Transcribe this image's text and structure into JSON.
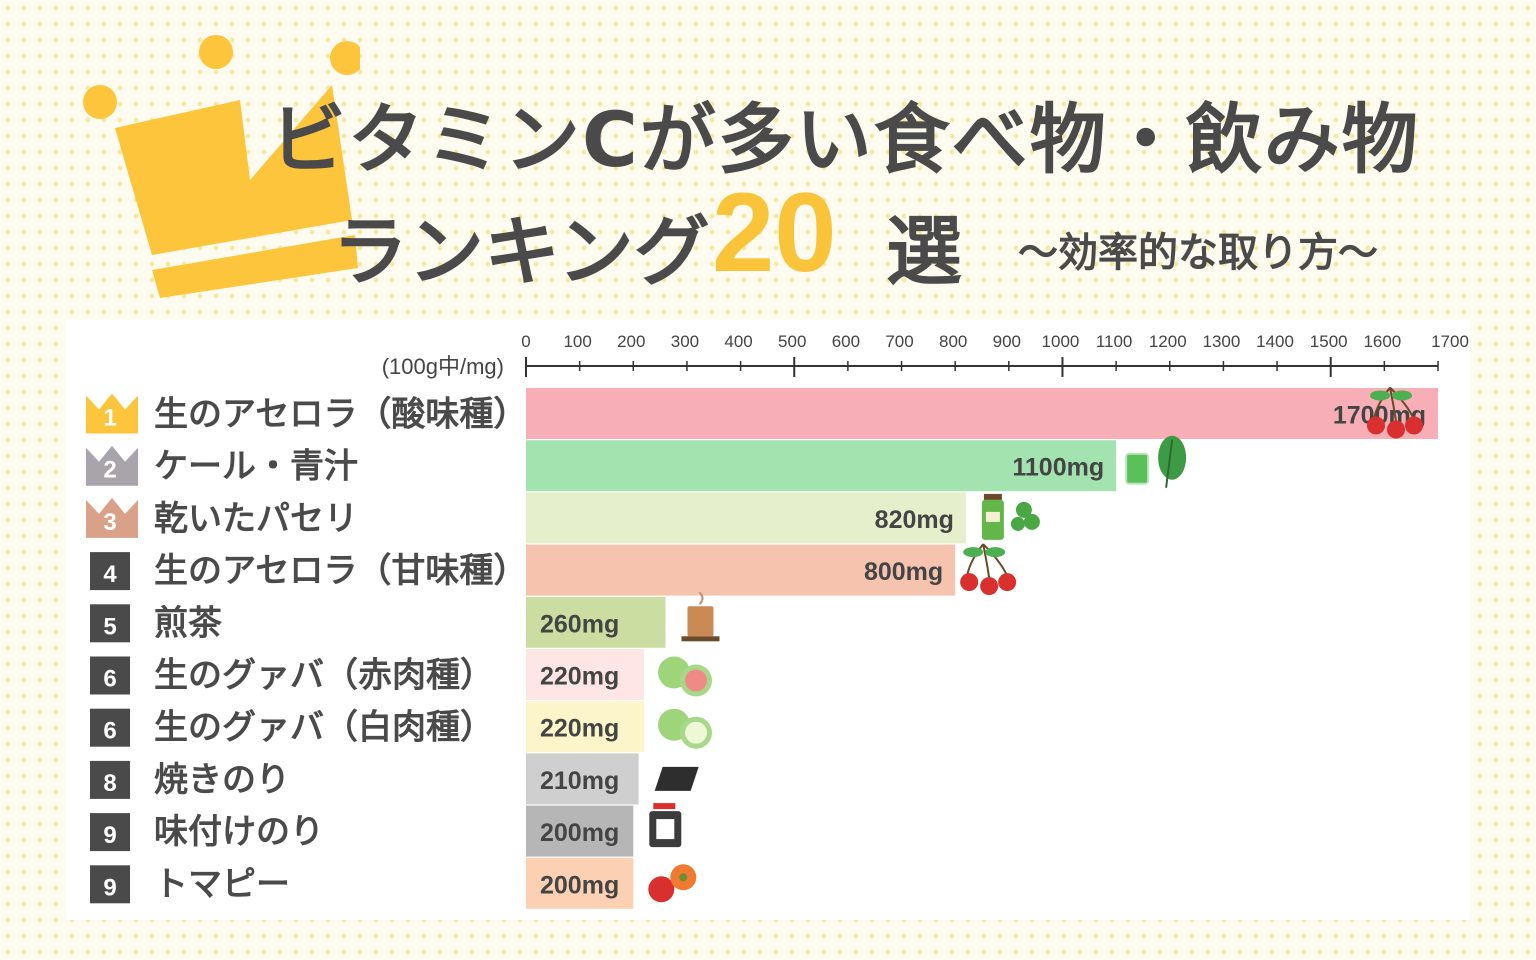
{
  "title": {
    "line1": "ビタミンCが多い食べ物・飲み物",
    "line2_prefix": "ランキング",
    "count": "20",
    "line2_suffix": "選",
    "subtitle": "〜効率的な取り方〜"
  },
  "colors": {
    "crown_gold": "#fcc53b",
    "crown_silver": "#a9a4ab",
    "crown_bronze": "#d9a188",
    "rank_badge": "#4a4a4a"
  },
  "chart_data": {
    "type": "bar",
    "orientation": "horizontal",
    "unit_label": "(100g中/mg)",
    "xlim": [
      0,
      1700
    ],
    "ticks": [
      0,
      100,
      200,
      300,
      400,
      500,
      600,
      700,
      800,
      900,
      1000,
      1100,
      1200,
      1300,
      1400,
      1500,
      1600,
      1700
    ],
    "major_ticks": [
      500,
      1000,
      1500
    ],
    "value_suffix": "mg",
    "rows": [
      {
        "rank": "1",
        "badge": "crown-gold",
        "label": "生のアセロラ（酸味種）",
        "value": 1700,
        "color": "#f7aeb6",
        "icon": "cherry-icon"
      },
      {
        "rank": "2",
        "badge": "crown-silver",
        "label": "ケール・青汁",
        "value": 1100,
        "color": "#a3e3b0",
        "icon": "kale-juice-icon"
      },
      {
        "rank": "3",
        "badge": "crown-bronze",
        "label": "乾いたパセリ",
        "value": 820,
        "color": "#e5efcc",
        "icon": "parsley-jar-icon"
      },
      {
        "rank": "4",
        "badge": "square",
        "label": "生のアセロラ（甘味種）",
        "value": 800,
        "color": "#f6c3af",
        "icon": "cherry-icon"
      },
      {
        "rank": "5",
        "badge": "square",
        "label": "煎茶",
        "value": 260,
        "color": "#cbdda0",
        "icon": "tea-cup-icon"
      },
      {
        "rank": "6",
        "badge": "square",
        "label": "生のグァバ（赤肉種）",
        "value": 220,
        "color": "#fde6e4",
        "icon": "red-guava-icon"
      },
      {
        "rank": "6",
        "badge": "square",
        "label": "生のグァバ（白肉種）",
        "value": 220,
        "color": "#fbf5c9",
        "icon": "white-guava-icon"
      },
      {
        "rank": "8",
        "badge": "square",
        "label": "焼きのり",
        "value": 210,
        "color": "#cfcfcf",
        "icon": "nori-icon"
      },
      {
        "rank": "9",
        "badge": "square",
        "label": "味付けのり",
        "value": 200,
        "color": "#b6b6b6",
        "icon": "nori-jar-icon"
      },
      {
        "rank": "9",
        "badge": "square",
        "label": "トマピー",
        "value": 200,
        "color": "#fbd0b3",
        "icon": "tomapi-icon"
      }
    ]
  }
}
